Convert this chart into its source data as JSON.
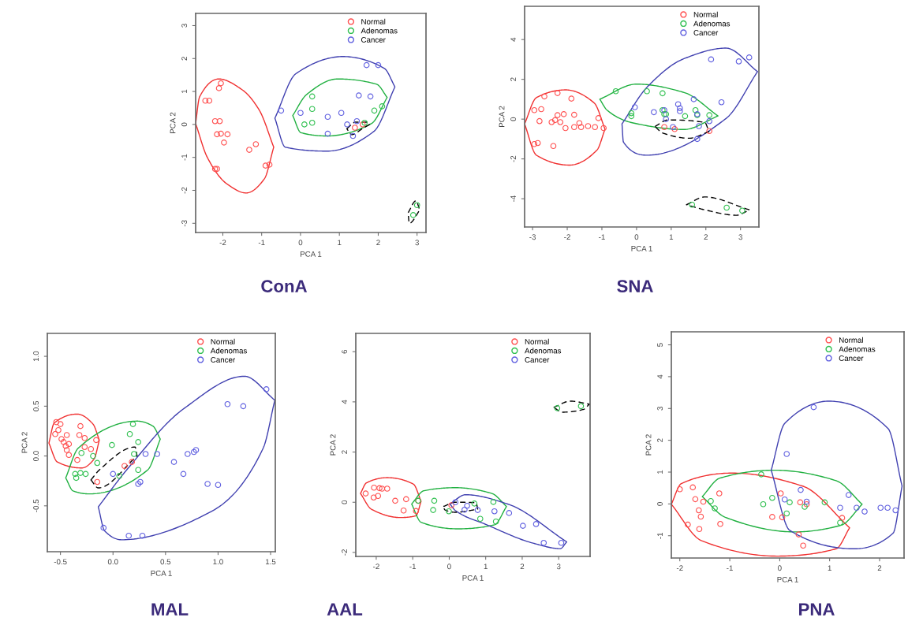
{
  "chart_data": [
    {
      "type": "scatter",
      "title": "ConA",
      "xlabel": "PCA 1",
      "ylabel": "PCA 2",
      "xlim": [
        -2.7,
        3.23
      ],
      "ylim": [
        -3.28,
        3.37
      ],
      "xticks": [
        -2,
        -1,
        0,
        1,
        2,
        3
      ],
      "yticks": [
        -3,
        -2,
        -1,
        0,
        1,
        2,
        3
      ],
      "marker": "circle",
      "legend": "top right",
      "grid": false,
      "series": [
        {
          "name": "Normal",
          "color": "#ff5050",
          "x": [
            -2.05,
            -2.1,
            -2.45,
            -2.35,
            -2.2,
            -2.08,
            -2.15,
            -2.05,
            -1.88,
            -1.97,
            -1.32,
            -1.15,
            -0.9,
            -0.8,
            -2.2,
            -2.15,
            1.4,
            1.6
          ],
          "values": [
            1.25,
            1.1,
            0.72,
            0.72,
            0.1,
            0.1,
            -0.3,
            -0.28,
            -0.3,
            -0.55,
            -0.77,
            -0.6,
            -1.25,
            -1.22,
            -1.35,
            -1.35,
            -0.1,
            0.0
          ]
        },
        {
          "name": "Adenomas",
          "color": "#30c050",
          "x": [
            0.3,
            0.3,
            0.1,
            0.3,
            1.9,
            2.1,
            1.65,
            2.9,
            3.0
          ],
          "values": [
            0.85,
            0.47,
            0.0,
            0.05,
            0.42,
            0.55,
            0.05,
            -2.75,
            -2.45
          ]
        },
        {
          "name": "Cancer",
          "color": "#6060e0",
          "x": [
            -0.5,
            0.0,
            0.7,
            1.05,
            1.5,
            1.8,
            1.7,
            2.0,
            0.7,
            1.2,
            1.45,
            1.35
          ],
          "values": [
            0.42,
            0.35,
            0.23,
            0.35,
            0.88,
            0.85,
            1.8,
            1.8,
            -0.28,
            0.0,
            0.1,
            -0.35
          ]
        }
      ]
    },
    {
      "type": "scatter",
      "title": "SNA",
      "xlabel": "PCA 1",
      "ylabel": "PCA 2",
      "xlim": [
        -3.23,
        3.53
      ],
      "ylim": [
        -5.42,
        5.67
      ],
      "xticks": [
        -3,
        -2,
        -1,
        0,
        1,
        2,
        3
      ],
      "yticks": [
        -4,
        -2,
        0,
        2,
        4
      ],
      "marker": "circle",
      "legend": "top right",
      "grid": false,
      "series": [
        {
          "name": "Normal",
          "color": "#ff5050",
          "x": [
            -2.66,
            -2.28,
            -1.88,
            -2.95,
            -2.75,
            -2.28,
            -2.1,
            -1.8,
            -2.8,
            -2.45,
            -2.35,
            -2.2,
            -2.05,
            -1.8,
            -1.65,
            -1.6,
            -1.4,
            -1.2,
            -1.1,
            -0.95,
            -2.95,
            -2.85,
            -2.4,
            0.8,
            1.1,
            2.1
          ],
          "values": [
            1.14,
            1.31,
            1.03,
            0.45,
            0.5,
            0.2,
            0.25,
            0.22,
            -0.1,
            -0.15,
            -0.05,
            -0.15,
            -0.45,
            -0.4,
            -0.2,
            -0.4,
            -0.35,
            -0.4,
            0.05,
            -0.45,
            -1.25,
            -1.2,
            -1.35,
            -0.4,
            -0.5,
            -0.6
          ]
        },
        {
          "name": "Adenomas",
          "color": "#30c050",
          "x": [
            -0.6,
            0.3,
            0.75,
            -0.15,
            -0.15,
            0.75,
            0.8,
            0.85,
            1.4,
            1.7,
            1.75,
            2.1,
            1.6,
            2.6,
            3.05
          ],
          "values": [
            1.4,
            1.4,
            1.3,
            0.3,
            0.15,
            0.45,
            0.25,
            0.25,
            0.15,
            0.45,
            0.2,
            0.2,
            -4.3,
            -4.45,
            -4.6
          ]
        },
        {
          "name": "Cancer",
          "color": "#6060e0",
          "x": [
            -0.05,
            0.5,
            0.8,
            0.85,
            1.2,
            1.25,
            1.25,
            1.65,
            1.75,
            2.45,
            2.15,
            2.95,
            3.25,
            1.05,
            1.8,
            2.1,
            1.75
          ],
          "values": [
            0.6,
            0.35,
            0.45,
            0.0,
            0.75,
            0.55,
            0.4,
            1.0,
            0.25,
            0.85,
            3.0,
            2.9,
            3.1,
            -0.4,
            -0.35,
            -0.1,
            -1.0
          ]
        }
      ]
    },
    {
      "type": "scatter",
      "title": "MAL",
      "xlabel": "PCA 1",
      "ylabel": "PCA 2",
      "xlim": [
        -0.625,
        1.545
      ],
      "ylim": [
        -0.96,
        1.23
      ],
      "xticks": [
        {
          "value": -0.5,
          "label": "-0.5"
        },
        {
          "value": 0,
          "label": "0.0"
        },
        {
          "value": 0.5,
          "label": "0.5"
        },
        {
          "value": 1,
          "label": "1.0"
        },
        {
          "value": 1.5,
          "label": "1.5"
        }
      ],
      "yticks": [
        {
          "value": -0.5,
          "label": "-0.5"
        },
        {
          "value": 0,
          "label": "0.0"
        },
        {
          "value": 0.5,
          "label": "0.5"
        },
        {
          "value": 1,
          "label": "1.0"
        }
      ],
      "marker": "circle",
      "legend": "top right",
      "grid": false,
      "series": [
        {
          "name": "Normal",
          "color": "#ff5050",
          "x": [
            -0.54,
            -0.5,
            -0.55,
            -0.52,
            -0.44,
            -0.49,
            -0.47,
            -0.42,
            -0.45,
            -0.44,
            -0.42,
            -0.31,
            -0.32,
            -0.27,
            -0.27,
            -0.21,
            -0.16,
            -0.34,
            0.11,
            0.18,
            -0.15
          ],
          "values": [
            0.34,
            0.32,
            0.22,
            0.26,
            0.21,
            0.17,
            0.14,
            0.12,
            0.1,
            0.06,
            0.01,
            0.3,
            0.21,
            0.18,
            0.09,
            0.07,
            0.16,
            -0.04,
            -0.1,
            -0.06,
            -0.26
          ]
        },
        {
          "name": "Adenomas",
          "color": "#30c050",
          "x": [
            -0.3,
            -0.19,
            -0.15,
            -0.01,
            0.19,
            0.16,
            0.24,
            0.2,
            -0.36,
            -0.35,
            -0.31,
            -0.26,
            0.06,
            0.24
          ],
          "values": [
            0.03,
            0.0,
            -0.07,
            0.11,
            0.32,
            0.22,
            0.14,
            0.02,
            -0.18,
            -0.22,
            -0.17,
            -0.18,
            -0.2,
            -0.14
          ]
        },
        {
          "name": "Cancer",
          "color": "#6060e0",
          "x": [
            0.31,
            0.42,
            0.58,
            0.71,
            0.77,
            0.79,
            0.67,
            0.9,
            1.0,
            0.0,
            0.24,
            0.26,
            -0.09,
            0.15,
            0.28,
            1.24,
            1.09,
            1.46
          ],
          "values": [
            0.02,
            0.02,
            -0.06,
            0.02,
            0.04,
            0.06,
            -0.18,
            -0.28,
            -0.29,
            -0.18,
            -0.28,
            -0.26,
            -0.72,
            -0.8,
            -0.8,
            0.5,
            0.52,
            0.67
          ]
        }
      ]
    },
    {
      "type": "scatter",
      "title": "AAL",
      "xlabel": "PCA 1",
      "ylabel": "PCA 2",
      "xlim": [
        -2.56,
        3.86
      ],
      "ylim": [
        -2.16,
        6.73
      ],
      "xticks": [
        -2,
        -1,
        0,
        1,
        2,
        3
      ],
      "yticks": [
        -2,
        0,
        2,
        4,
        6
      ],
      "marker": "circle",
      "legend": "top right",
      "grid": false,
      "series": [
        {
          "name": "Normal",
          "color": "#ff5050",
          "x": [
            -2.29,
            -2.06,
            -1.91,
            -1.84,
            -1.7,
            -2.07,
            -1.95,
            -1.48,
            -1.18,
            -1.25,
            -0.91,
            0.06,
            -0.85
          ],
          "values": [
            0.35,
            0.58,
            0.56,
            0.54,
            0.54,
            0.19,
            0.25,
            0.06,
            0.12,
            -0.33,
            -0.35,
            -0.12,
            0.06
          ]
        },
        {
          "name": "Adenomas",
          "color": "#30c050",
          "x": [
            -0.85,
            -0.41,
            -0.44,
            -0.01,
            0.69,
            0.85,
            1.21,
            1.28,
            2.96,
            3.61
          ],
          "values": [
            0.06,
            0.06,
            -0.31,
            -0.36,
            -0.05,
            -0.66,
            0.01,
            -0.77,
            3.75,
            3.83
          ]
        },
        {
          "name": "Cancer",
          "color": "#6060e0",
          "x": [
            0.17,
            0.49,
            0.42,
            0.78,
            1.24,
            1.64,
            2.02,
            2.38,
            2.59,
            3.07
          ],
          "values": [
            0.0,
            -0.14,
            -0.3,
            -0.31,
            -0.36,
            -0.43,
            -0.94,
            -0.87,
            -1.62,
            -1.62
          ]
        }
      ]
    },
    {
      "type": "scatter",
      "title": "PNA",
      "xlabel": "PCA 1",
      "ylabel": "PCA 2",
      "xlim": [
        -2.17,
        2.49
      ],
      "ylim": [
        -1.7,
        5.41
      ],
      "xticks": [
        -2,
        -1,
        0,
        1,
        2
      ],
      "yticks": [
        -1,
        0,
        1,
        2,
        3,
        4,
        5
      ],
      "marker": "circle",
      "legend": "top right",
      "grid": false,
      "series": [
        {
          "name": "Normal",
          "color": "#ff5050",
          "x": [
            -2.0,
            -1.74,
            -1.69,
            -1.21,
            -1.62,
            -1.58,
            -1.84,
            -1.61,
            -1.19,
            -1.53,
            0.02,
            -0.15,
            0.05,
            0.41,
            0.54,
            0.38,
            0.47,
            1.25
          ],
          "values": [
            0.46,
            0.52,
            0.15,
            0.33,
            -0.2,
            -0.4,
            -0.65,
            -0.79,
            -0.63,
            0.07,
            0.33,
            -0.41,
            -0.42,
            0.05,
            -0.01,
            -0.96,
            -1.31,
            -0.44
          ]
        },
        {
          "name": "Adenomas",
          "color": "#30c050",
          "x": [
            -1.38,
            -1.3,
            -0.37,
            -0.33,
            -0.15,
            0.2,
            0.5,
            0.9,
            1.21,
            0.14
          ],
          "values": [
            0.09,
            -0.14,
            0.93,
            -0.01,
            0.19,
            0.05,
            -0.09,
            0.05,
            -0.59,
            -0.3
          ]
        },
        {
          "name": "Cancer",
          "color": "#6060e0",
          "x": [
            0.68,
            0.14,
            0.42,
            0.1,
            0.54,
            1.38,
            1.21,
            1.54,
            1.7,
            2.02,
            2.16,
            2.32
          ],
          "values": [
            3.04,
            1.57,
            0.44,
            0.14,
            0.07,
            0.28,
            -0.12,
            -0.12,
            -0.24,
            -0.12,
            -0.12,
            -0.2
          ]
        }
      ]
    }
  ]
}
